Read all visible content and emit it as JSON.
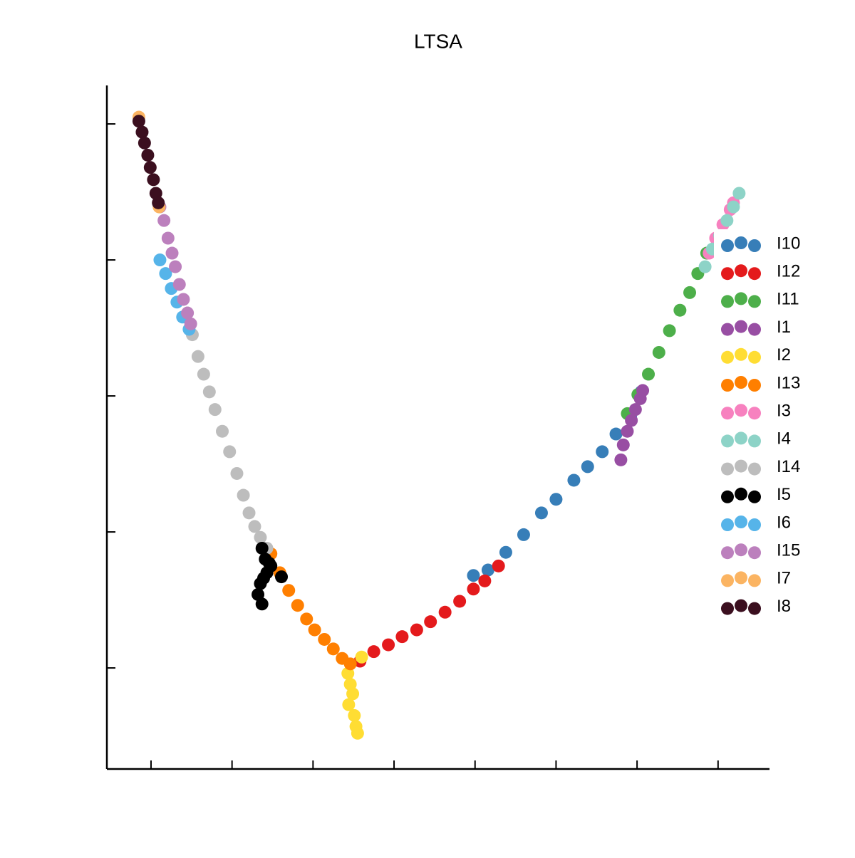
{
  "chart_data": {
    "type": "scatter",
    "title": "LTSA",
    "xlim": [
      -0.545,
      7.635
    ],
    "ylim": [
      -0.743,
      4.283
    ],
    "xticks": [
      0,
      1,
      2,
      3,
      4,
      5,
      6,
      7
    ],
    "yticks": [
      0,
      1,
      2,
      3,
      4
    ],
    "series": [
      {
        "name": "I10",
        "color": "#377eb8",
        "x": [
          3.98,
          4.16,
          4.38,
          4.6,
          4.82,
          5.0,
          5.22,
          5.39,
          5.57,
          5.74,
          5.92,
          6.05
        ],
        "y": [
          0.68,
          0.72,
          0.85,
          0.98,
          1.14,
          1.24,
          1.38,
          1.48,
          1.59,
          1.72,
          1.85,
          2.03
        ]
      },
      {
        "name": "I12",
        "color": "#e41a1c",
        "x": [
          2.58,
          2.75,
          2.93,
          3.1,
          3.28,
          3.45,
          3.63,
          3.81,
          3.98,
          4.12,
          4.29
        ],
        "y": [
          0.05,
          0.12,
          0.17,
          0.23,
          0.28,
          0.34,
          0.41,
          0.49,
          0.58,
          0.64,
          0.75
        ]
      },
      {
        "name": "I11",
        "color": "#4daf4a",
        "x": [
          5.88,
          6.01,
          6.14,
          6.27,
          6.4,
          6.53,
          6.65,
          6.75,
          6.86
        ],
        "y": [
          1.87,
          2.01,
          2.16,
          2.32,
          2.48,
          2.63,
          2.76,
          2.9,
          3.05
        ]
      },
      {
        "name": "I1",
        "color": "#984ea3",
        "x": [
          5.8,
          5.83,
          5.88,
          5.93,
          5.98,
          6.04,
          6.07
        ],
        "y": [
          1.53,
          1.64,
          1.74,
          1.82,
          1.9,
          1.98,
          2.04
        ]
      },
      {
        "name": "I2",
        "color": "#ffdd33",
        "x": [
          2.43,
          2.46,
          2.49,
          2.44,
          2.51,
          2.53,
          2.55,
          2.6
        ],
        "y": [
          -0.04,
          -0.12,
          -0.19,
          -0.27,
          -0.35,
          -0.43,
          -0.48,
          0.08
        ]
      },
      {
        "name": "I13",
        "color": "#ff7f00",
        "x": [
          1.48,
          1.59,
          1.7,
          1.81,
          1.92,
          2.02,
          2.14,
          2.25,
          2.36,
          2.46
        ],
        "y": [
          0.84,
          0.7,
          0.57,
          0.46,
          0.36,
          0.28,
          0.21,
          0.14,
          0.07,
          0.03
        ]
      },
      {
        "name": "I3",
        "color": "#f781bf",
        "x": [
          6.89,
          6.97,
          7.06,
          7.15,
          7.19
        ],
        "y": [
          3.05,
          3.16,
          3.26,
          3.37,
          3.42
        ]
      },
      {
        "name": "I4",
        "color": "#8dd3c7",
        "x": [
          6.84,
          6.93,
          7.02,
          7.11,
          7.19,
          7.26
        ],
        "y": [
          2.95,
          3.08,
          3.18,
          3.29,
          3.39,
          3.49
        ]
      },
      {
        "name": "I14",
        "color": "#bdbdbd",
        "x": [
          0.51,
          0.58,
          0.65,
          0.72,
          0.79,
          0.88,
          0.97,
          1.06,
          1.14,
          1.21,
          1.28,
          1.35,
          1.43
        ],
        "y": [
          2.45,
          2.29,
          2.16,
          2.03,
          1.9,
          1.74,
          1.59,
          1.43,
          1.27,
          1.14,
          1.04,
          0.96,
          0.88
        ]
      },
      {
        "name": "I5",
        "color": "#000000",
        "x": [
          1.37,
          1.41,
          1.48,
          1.61,
          1.43,
          1.35,
          1.32,
          1.37,
          1.46,
          1.39
        ],
        "y": [
          0.88,
          0.8,
          0.75,
          0.67,
          0.7,
          0.62,
          0.54,
          0.47,
          0.77,
          0.66
        ]
      },
      {
        "name": "I6",
        "color": "#56b4e9",
        "x": [
          0.11,
          0.18,
          0.25,
          0.32,
          0.39,
          0.47
        ],
        "y": [
          3.0,
          2.9,
          2.79,
          2.69,
          2.58,
          2.49
        ]
      },
      {
        "name": "I15",
        "color": "#bc80bd",
        "x": [
          0.11,
          0.16,
          0.21,
          0.26,
          0.3,
          0.35,
          0.4,
          0.45,
          0.49
        ],
        "y": [
          3.39,
          3.29,
          3.16,
          3.05,
          2.95,
          2.82,
          2.71,
          2.61,
          2.53
        ]
      },
      {
        "name": "I7",
        "color": "#fbb462",
        "x": [
          -0.15,
          0.1
        ],
        "y": [
          4.05,
          3.39
        ]
      },
      {
        "name": "I8",
        "color": "#3b0f1f",
        "x": [
          -0.15,
          -0.11,
          -0.08,
          -0.04,
          -0.01,
          0.03,
          0.06,
          0.09
        ],
        "y": [
          4.02,
          3.94,
          3.86,
          3.77,
          3.68,
          3.59,
          3.49,
          3.42
        ]
      }
    ]
  }
}
